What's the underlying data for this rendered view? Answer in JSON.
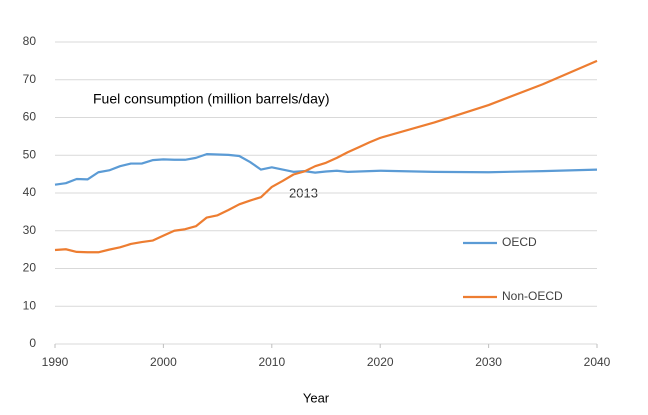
{
  "chart_data": {
    "type": "line",
    "annotations": [
      "Fuel consumption (million barrels/day)",
      "2013"
    ],
    "xlabel": "Year",
    "x": [
      1990,
      1991,
      1992,
      1993,
      1994,
      1995,
      1996,
      1997,
      1998,
      1999,
      2000,
      2001,
      2002,
      2003,
      2004,
      2005,
      2006,
      2007,
      2008,
      2009,
      2010,
      2011,
      2012,
      2013,
      2014,
      2015,
      2016,
      2017,
      2018,
      2019,
      2020,
      2025,
      2030,
      2035,
      2040
    ],
    "series": [
      {
        "name": "OECD",
        "color": "#5b9bd5",
        "values": [
          42.2,
          42.6,
          43.7,
          43.6,
          45.5,
          46.0,
          47.1,
          47.8,
          47.8,
          48.7,
          48.9,
          48.8,
          48.8,
          49.3,
          50.3,
          50.2,
          50.1,
          49.8,
          48.2,
          46.2,
          46.8,
          46.2,
          45.6,
          45.8,
          45.4,
          45.7,
          45.9,
          45.6,
          45.7,
          45.8,
          45.9,
          45.6,
          45.5,
          45.8,
          46.2
        ]
      },
      {
        "name": "Non-OECD",
        "color": "#ed7d31",
        "values": [
          24.9,
          25.1,
          24.4,
          24.3,
          24.3,
          25.0,
          25.6,
          26.5,
          27.0,
          27.4,
          28.7,
          30.0,
          30.4,
          31.2,
          33.5,
          34.1,
          35.5,
          37.0,
          38.0,
          38.9,
          41.6,
          43.2,
          44.9,
          45.7,
          47.1,
          48.0,
          49.3,
          50.8,
          52.1,
          53.4,
          54.6,
          58.7,
          63.3,
          68.8,
          75.0
        ]
      }
    ],
    "xlim": [
      1990,
      2040
    ],
    "xticks": [
      1990,
      2000,
      2010,
      2020,
      2030,
      2040
    ],
    "ylim": [
      0,
      80
    ],
    "yticks": [
      0,
      10,
      20,
      30,
      40,
      50,
      60,
      70,
      80
    ],
    "grid": true,
    "legend": "right"
  }
}
